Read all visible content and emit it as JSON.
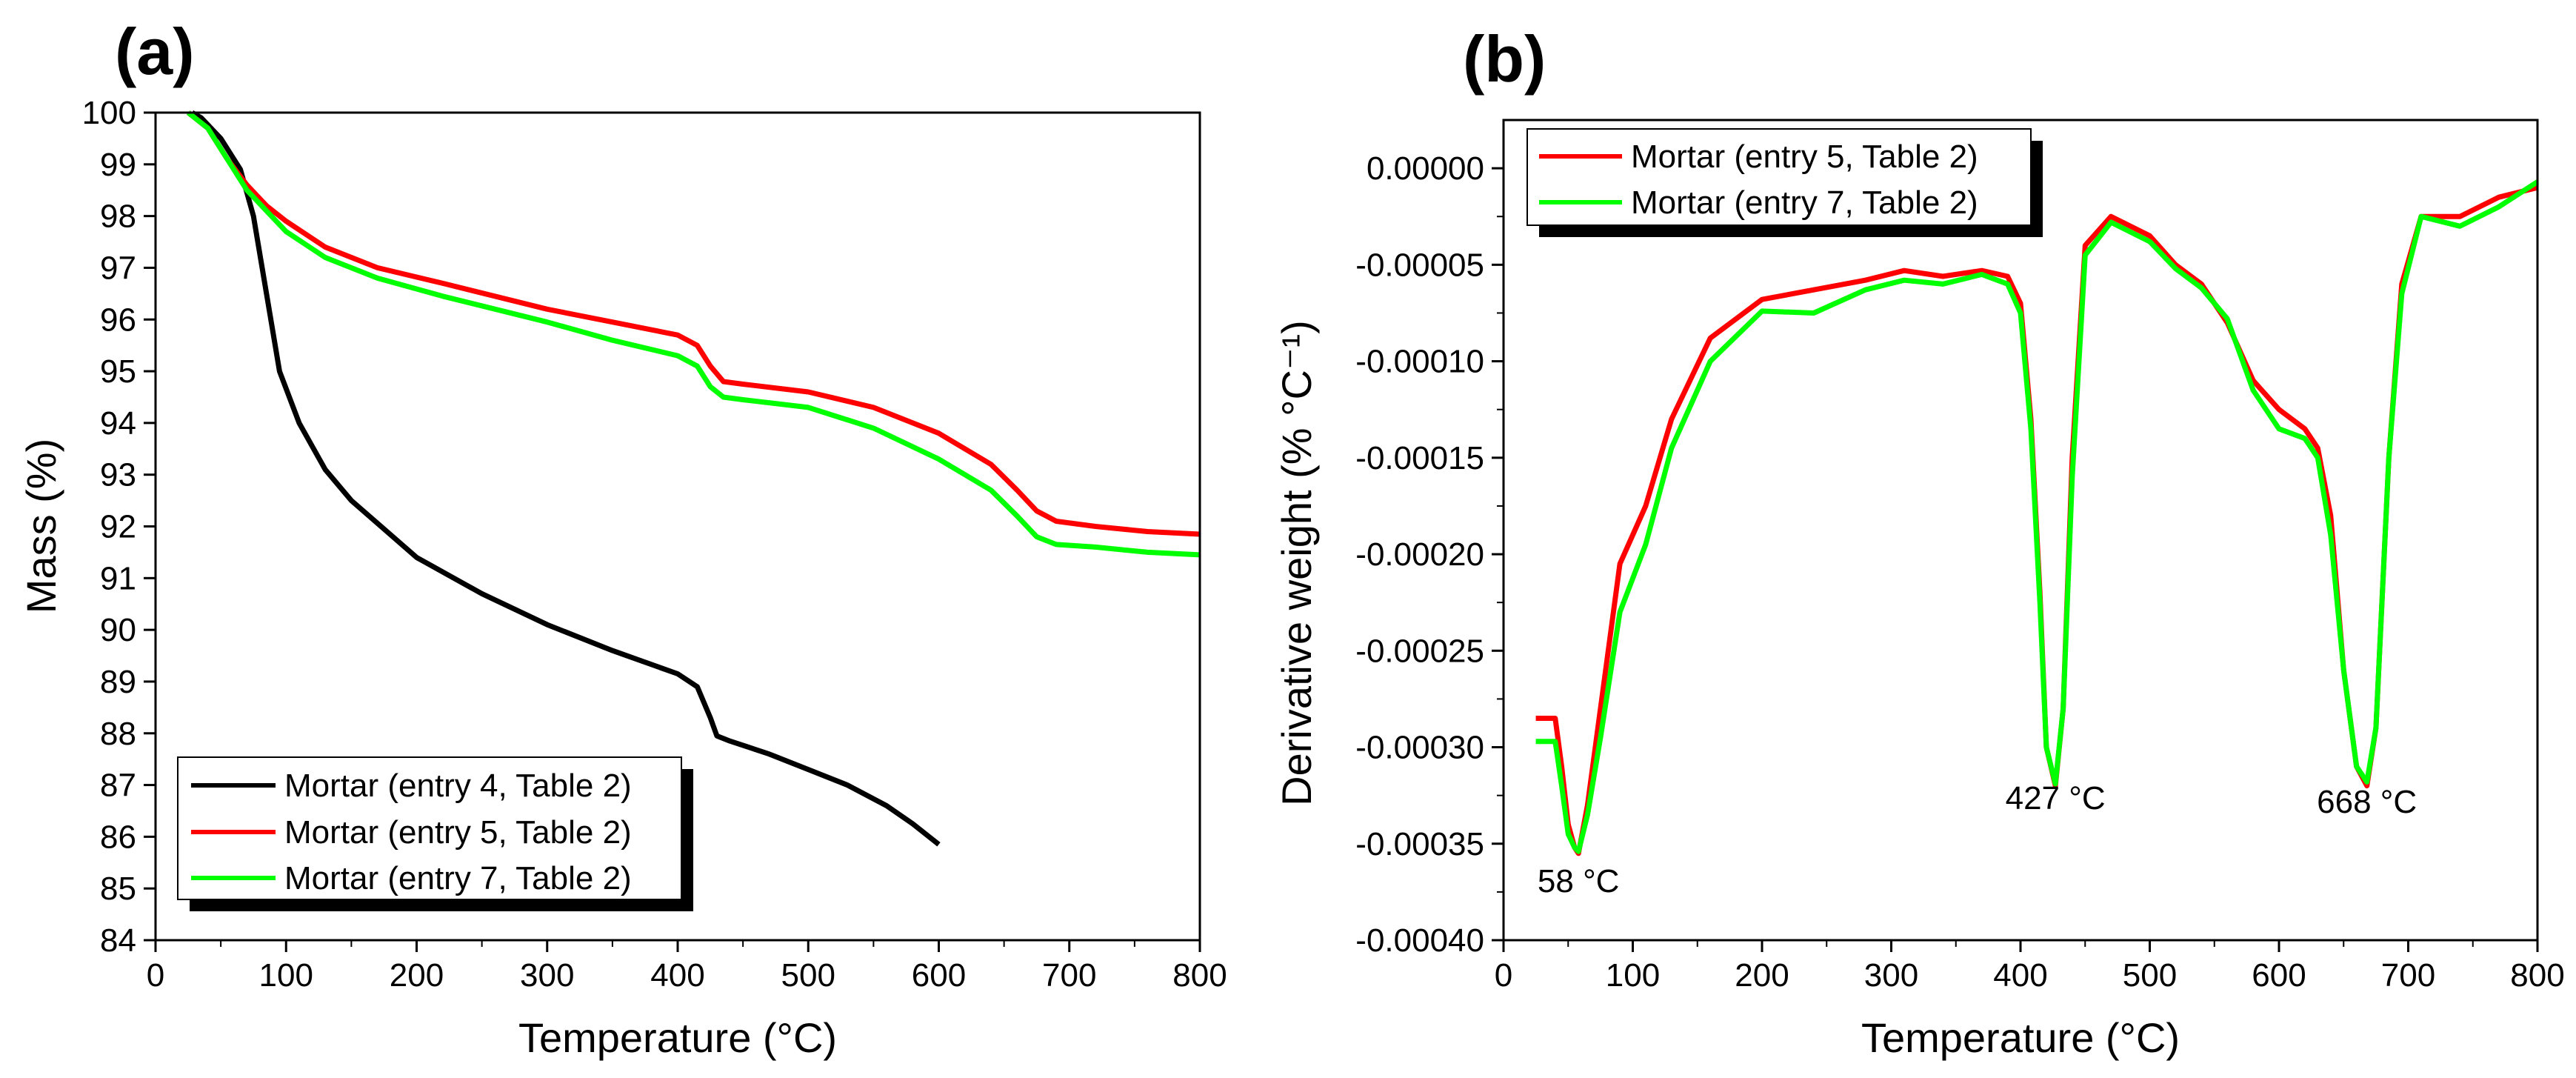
{
  "chart_data": [
    {
      "panel_label": "(a)",
      "type": "line",
      "xlabel": "Temperature (°C)",
      "ylabel": "Mass (%)",
      "xlim": [
        0,
        800
      ],
      "ylim": [
        84,
        100
      ],
      "xticks": [
        0,
        100,
        200,
        300,
        400,
        500,
        600,
        700,
        800
      ],
      "yticks": [
        84,
        85,
        86,
        87,
        88,
        89,
        90,
        91,
        92,
        93,
        94,
        95,
        96,
        97,
        98,
        99,
        100
      ],
      "legend_position": "bottom-left",
      "series": [
        {
          "name": "Mortar (entry 4, Table 2)",
          "color": "#000000",
          "x": [
            28,
            35,
            50,
            65,
            75,
            85,
            95,
            110,
            130,
            150,
            200,
            250,
            300,
            350,
            400,
            415,
            425,
            430,
            440,
            470,
            500,
            530,
            560,
            580,
            600
          ],
          "y": [
            100,
            99.9,
            99.5,
            98.9,
            98.0,
            96.5,
            95.0,
            94.0,
            93.1,
            92.5,
            91.4,
            90.7,
            90.1,
            89.6,
            89.15,
            88.9,
            88.3,
            87.95,
            87.85,
            87.6,
            87.3,
            87.0,
            86.6,
            86.25,
            85.85
          ]
        },
        {
          "name": "Mortar (entry 5, Table 2)",
          "color": "#ff0000",
          "x": [
            25,
            40,
            55,
            70,
            85,
            100,
            130,
            170,
            220,
            300,
            350,
            400,
            415,
            425,
            435,
            450,
            500,
            550,
            600,
            640,
            660,
            675,
            690,
            720,
            760,
            800
          ],
          "y": [
            100,
            99.7,
            99.1,
            98.6,
            98.2,
            97.9,
            97.4,
            97.0,
            96.7,
            96.2,
            95.95,
            95.7,
            95.5,
            95.1,
            94.8,
            94.75,
            94.6,
            94.3,
            93.8,
            93.2,
            92.7,
            92.3,
            92.1,
            92.0,
            91.9,
            91.85
          ]
        },
        {
          "name": "Mortar (entry 7, Table 2)",
          "color": "#00ff00",
          "x": [
            25,
            40,
            55,
            70,
            85,
            100,
            130,
            170,
            220,
            300,
            350,
            400,
            415,
            425,
            435,
            450,
            500,
            550,
            600,
            640,
            660,
            675,
            690,
            720,
            760,
            800
          ],
          "y": [
            100,
            99.7,
            99.1,
            98.5,
            98.1,
            97.7,
            97.2,
            96.8,
            96.45,
            95.95,
            95.6,
            95.3,
            95.1,
            94.7,
            94.5,
            94.45,
            94.3,
            93.9,
            93.3,
            92.7,
            92.2,
            91.8,
            91.65,
            91.6,
            91.5,
            91.45
          ]
        }
      ]
    },
    {
      "panel_label": "(b)",
      "type": "line",
      "xlabel": "Temperature (°C)",
      "ylabel": "Derivative weight (% °C⁻¹)",
      "xlim": [
        0,
        800
      ],
      "ylim": [
        -0.0004,
        2.5e-05
      ],
      "xticks": [
        0,
        100,
        200,
        300,
        400,
        500,
        600,
        700,
        800
      ],
      "yticks": [
        0.0,
        -5e-05,
        -0.0001,
        -0.00015,
        -0.0002,
        -0.00025,
        -0.0003,
        -0.00035,
        -0.0004
      ],
      "ytick_labels": [
        "0.00000",
        "-0.00005",
        "-0.00010",
        "-0.00015",
        "-0.00020",
        "-0.00025",
        "-0.00030",
        "-0.00035",
        "-0.00040"
      ],
      "legend_position": "top-left",
      "annotations": [
        {
          "text": "58 °C",
          "x": 58,
          "y": -0.000375
        },
        {
          "text": "427 °C",
          "x": 427,
          "y": -0.000332
        },
        {
          "text": "668 °C",
          "x": 668,
          "y": -0.000334
        }
      ],
      "series": [
        {
          "name": "Mortar (entry 5, Table 2)",
          "color": "#ff0000",
          "x": [
            25,
            40,
            45,
            50,
            55,
            58,
            65,
            75,
            90,
            110,
            130,
            160,
            200,
            240,
            280,
            310,
            340,
            370,
            390,
            400,
            408,
            415,
            420,
            427,
            433,
            440,
            450,
            470,
            500,
            520,
            540,
            560,
            580,
            600,
            620,
            630,
            640,
            650,
            660,
            668,
            675,
            685,
            695,
            710,
            740,
            770,
            800
          ],
          "y": [
            -0.000285,
            -0.000285,
            -0.00031,
            -0.00034,
            -0.000352,
            -0.000355,
            -0.00033,
            -0.00028,
            -0.000205,
            -0.000175,
            -0.00013,
            -8.8e-05,
            -6.8e-05,
            -6.3e-05,
            -5.8e-05,
            -5.3e-05,
            -5.6e-05,
            -5.3e-05,
            -5.6e-05,
            -7e-05,
            -0.00013,
            -0.00022,
            -0.0003,
            -0.00032,
            -0.00028,
            -0.00015,
            -4e-05,
            -2.5e-05,
            -3.5e-05,
            -5e-05,
            -6e-05,
            -8e-05,
            -0.00011,
            -0.000125,
            -0.000135,
            -0.000145,
            -0.00018,
            -0.00026,
            -0.00031,
            -0.00032,
            -0.00029,
            -0.00015,
            -6e-05,
            -2.5e-05,
            -2.5e-05,
            -1.5e-05,
            -1e-05
          ]
        },
        {
          "name": "Mortar (entry 7, Table 2)",
          "color": "#00ff00",
          "x": [
            25,
            40,
            45,
            50,
            55,
            58,
            65,
            75,
            90,
            110,
            130,
            160,
            200,
            240,
            280,
            310,
            340,
            370,
            390,
            400,
            408,
            415,
            420,
            427,
            433,
            440,
            450,
            470,
            500,
            520,
            540,
            560,
            580,
            600,
            620,
            630,
            640,
            650,
            660,
            668,
            675,
            685,
            695,
            710,
            740,
            770,
            800
          ],
          "y": [
            -0.000297,
            -0.000297,
            -0.00032,
            -0.000345,
            -0.000352,
            -0.000354,
            -0.000335,
            -0.000295,
            -0.00023,
            -0.000195,
            -0.000145,
            -0.0001,
            -7.4e-05,
            -7.5e-05,
            -6.3e-05,
            -5.8e-05,
            -6e-05,
            -5.5e-05,
            -6e-05,
            -7.5e-05,
            -0.000135,
            -0.000225,
            -0.0003,
            -0.000319,
            -0.00028,
            -0.00016,
            -4.5e-05,
            -2.8e-05,
            -3.8e-05,
            -5.2e-05,
            -6.2e-05,
            -7.8e-05,
            -0.000115,
            -0.000135,
            -0.00014,
            -0.00015,
            -0.00019,
            -0.00026,
            -0.00031,
            -0.000318,
            -0.00029,
            -0.00015,
            -6.5e-05,
            -2.5e-05,
            -3e-05,
            -2e-05,
            -7e-06
          ]
        }
      ]
    }
  ]
}
